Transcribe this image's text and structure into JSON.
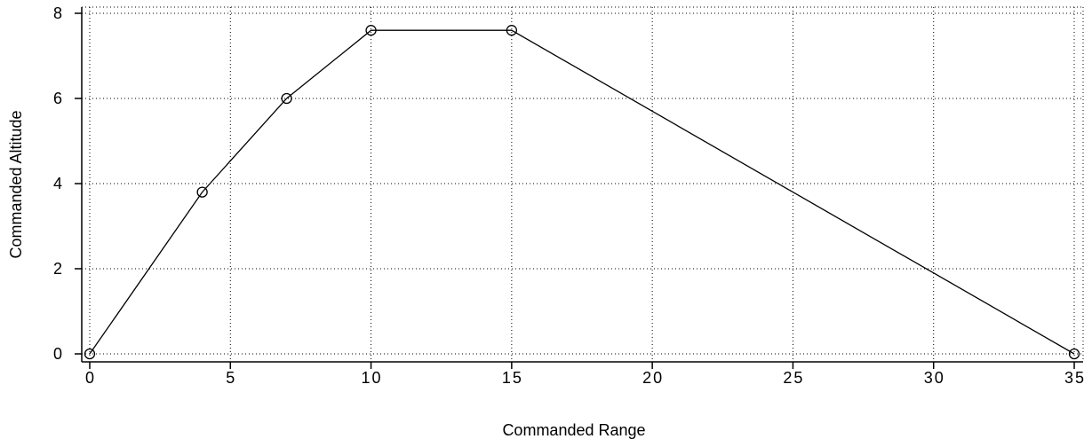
{
  "chart_data": {
    "type": "line",
    "title": "",
    "xlabel": "Commanded Range",
    "ylabel": "Commanded Altitude",
    "x": [
      0,
      4,
      7,
      10,
      15,
      35
    ],
    "series": [
      {
        "values": [
          0,
          3.8,
          6,
          7.6,
          7.6,
          0
        ]
      }
    ],
    "xlim": [
      0,
      35
    ],
    "ylim": [
      0,
      8
    ],
    "xticks": [
      "0",
      "5",
      "10",
      "15",
      "20",
      "25",
      "30",
      "35"
    ],
    "yticks": [
      "0",
      "2",
      "4",
      "6",
      "8"
    ],
    "grid": true,
    "marker": "circle",
    "colors": {
      "line": "#000000",
      "grid": "#000000"
    }
  }
}
